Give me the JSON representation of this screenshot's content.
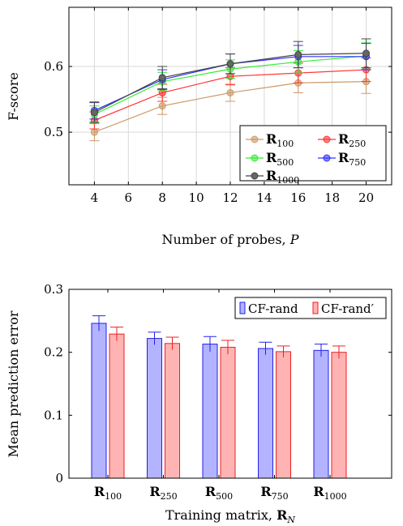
{
  "chart_data": [
    {
      "type": "line",
      "xlabel": "Number of probes, P",
      "ylabel": "F-score",
      "x": [
        4,
        8,
        12,
        16,
        20
      ],
      "x_ticks": [
        "4",
        "6",
        "8",
        "10",
        "12",
        "14",
        "16",
        "18",
        "20"
      ],
      "y_ticks": [
        "0.5",
        "0.6"
      ],
      "xlim": [
        2.5,
        21.5
      ],
      "ylim": [
        0.42,
        0.69
      ],
      "grid": true,
      "legend_position": "bottom-right",
      "series": [
        {
          "name": "R100",
          "label_main": "R",
          "label_sub": "100",
          "color": "#cc9966",
          "values": [
            0.5,
            0.54,
            0.56,
            0.575,
            0.577
          ],
          "errors": [
            0.013,
            0.013,
            0.013,
            0.015,
            0.018
          ]
        },
        {
          "name": "R250",
          "label_main": "R",
          "label_sub": "250",
          "color": "#ff3333",
          "values": [
            0.518,
            0.56,
            0.585,
            0.59,
            0.595
          ],
          "errors": [
            0.013,
            0.013,
            0.013,
            0.015,
            0.018
          ]
        },
        {
          "name": "R500",
          "label_main": "R",
          "label_sub": "500",
          "color": "#33ee33",
          "values": [
            0.527,
            0.577,
            0.596,
            0.607,
            0.616
          ],
          "errors": [
            0.013,
            0.014,
            0.014,
            0.017,
            0.02
          ]
        },
        {
          "name": "R750",
          "label_main": "R",
          "label_sub": "750",
          "color": "#3333ff",
          "values": [
            0.533,
            0.58,
            0.604,
            0.615,
            0.615
          ],
          "errors": [
            0.013,
            0.015,
            0.015,
            0.017,
            0.02
          ]
        },
        {
          "name": "R1000",
          "label_main": "R",
          "label_sub": "1000",
          "color": "#444444",
          "values": [
            0.53,
            0.583,
            0.604,
            0.618,
            0.62
          ],
          "errors": [
            0.015,
            0.017,
            0.015,
            0.02,
            0.022
          ]
        }
      ]
    },
    {
      "type": "bar",
      "xlabel_main": "Training matrix, ",
      "xlabel_bold": "R",
      "xlabel_sub": "N",
      "ylabel": "Mean prediction error",
      "categories": [
        {
          "main": "R",
          "sub": "100"
        },
        {
          "main": "R",
          "sub": "250"
        },
        {
          "main": "R",
          "sub": "500"
        },
        {
          "main": "R",
          "sub": "750"
        },
        {
          "main": "R",
          "sub": "1000"
        }
      ],
      "y_ticks": [
        "0",
        "0.1",
        "0.2",
        "0.3"
      ],
      "ylim": [
        0,
        0.3
      ],
      "legend_position": "top-right",
      "series": [
        {
          "name": "CF-rand",
          "fill": "#b3b3ff",
          "stroke": "#2222ee",
          "values": [
            0.246,
            0.222,
            0.213,
            0.206,
            0.203
          ],
          "errors": [
            0.012,
            0.01,
            0.012,
            0.01,
            0.01
          ]
        },
        {
          "name": "CF-rand′",
          "fill": "#ffb3b3",
          "stroke": "#ee2222",
          "values": [
            0.229,
            0.214,
            0.208,
            0.201,
            0.2
          ],
          "errors": [
            0.011,
            0.01,
            0.011,
            0.009,
            0.01
          ]
        }
      ]
    }
  ]
}
